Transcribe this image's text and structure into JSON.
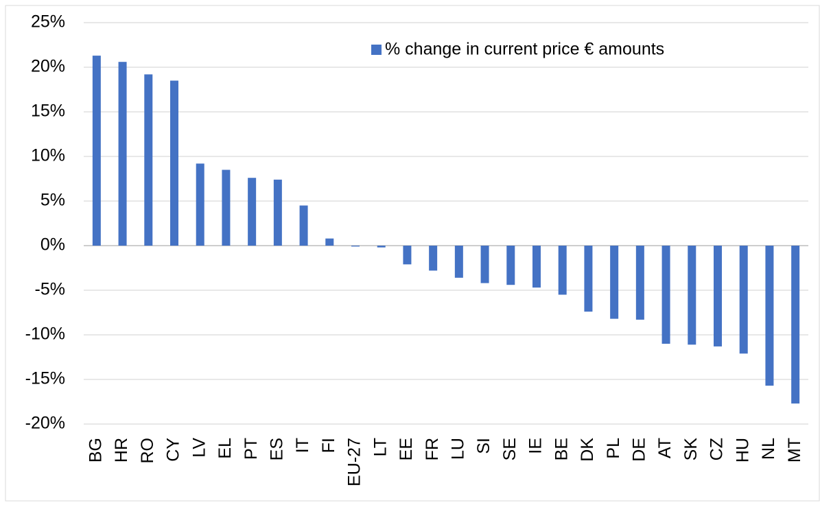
{
  "chart_data": {
    "type": "bar",
    "categories": [
      "BG",
      "HR",
      "RO",
      "CY",
      "LV",
      "EL",
      "PT",
      "ES",
      "IT",
      "FI",
      "EU-27",
      "LT",
      "EE",
      "FR",
      "LU",
      "SI",
      "SE",
      "IE",
      "BE",
      "DK",
      "PL",
      "DE",
      "AT",
      "SK",
      "CZ",
      "HU",
      "NL",
      "MT"
    ],
    "series": [
      {
        "name": "% change in current price € amounts",
        "color": "#4472c4",
        "values": [
          21.3,
          20.6,
          19.2,
          18.5,
          9.2,
          8.5,
          7.6,
          7.4,
          4.5,
          0.8,
          -0.1,
          -0.2,
          -2.1,
          -2.8,
          -3.6,
          -4.2,
          -4.4,
          -4.7,
          -5.5,
          -7.4,
          -8.2,
          -8.3,
          -11.0,
          -11.1,
          -11.3,
          -12.1,
          -15.7,
          -17.7
        ]
      }
    ],
    "ylim": [
      -20,
      25
    ],
    "yticks": [
      {
        "value": -20,
        "label": "-20%"
      },
      {
        "value": -15,
        "label": "-15%"
      },
      {
        "value": -10,
        "label": "-10%"
      },
      {
        "value": -5,
        "label": "-5%"
      },
      {
        "value": 0,
        "label": "0%"
      },
      {
        "value": 5,
        "label": "5%"
      },
      {
        "value": 10,
        "label": "10%"
      },
      {
        "value": 15,
        "label": "15%"
      },
      {
        "value": 20,
        "label": "20%"
      },
      {
        "value": 25,
        "label": "25%"
      }
    ],
    "grid": true,
    "legend": "top-right"
  }
}
